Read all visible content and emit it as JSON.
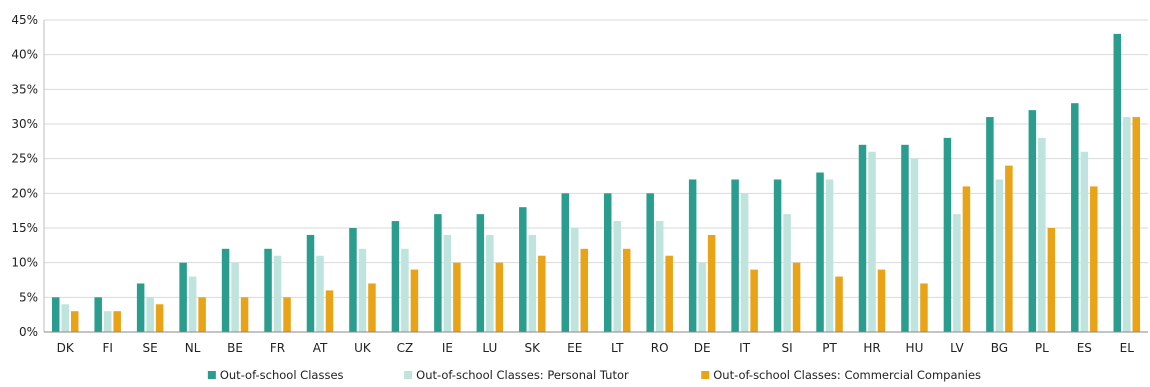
{
  "chart_data": {
    "type": "bar",
    "categories": [
      "DK",
      "FI",
      "SE",
      "NL",
      "BE",
      "FR",
      "AT",
      "UK",
      "CZ",
      "IE",
      "LU",
      "SK",
      "EE",
      "LT",
      "RO",
      "DE",
      "IT",
      "SI",
      "PT",
      "HR",
      "HU",
      "LV",
      "BG",
      "PL",
      "ES",
      "EL"
    ],
    "series": [
      {
        "name": "Out-of-school Classes",
        "color": "#2a9d8f",
        "values": [
          5,
          5,
          7,
          10,
          12,
          12,
          14,
          15,
          16,
          17,
          17,
          18,
          20,
          20,
          20,
          22,
          22,
          22,
          23,
          27,
          27,
          28,
          31,
          32,
          33,
          43
        ]
      },
      {
        "name": "Out-of-school Classes: Personal Tutor",
        "color": "#bfe3dd",
        "values": [
          4,
          3,
          5,
          8,
          10,
          11,
          11,
          12,
          12,
          14,
          14,
          14,
          15,
          16,
          16,
          10,
          20,
          17,
          22,
          26,
          25,
          17,
          22,
          28,
          26,
          31
        ]
      },
      {
        "name": "Out-of-school Classes: Commercial Companies",
        "color": "#e8a317",
        "values": [
          3,
          3,
          4,
          5,
          5,
          5,
          6,
          7,
          9,
          10,
          10,
          11,
          12,
          12,
          11,
          14,
          9,
          10,
          8,
          9,
          7,
          21,
          24,
          15,
          21,
          31
        ]
      }
    ],
    "y_ticks": [
      "0%",
      "5%",
      "10%",
      "15%",
      "20%",
      "25%",
      "30%",
      "35%",
      "40%",
      "45%"
    ],
    "ylim": [
      0,
      45
    ],
    "grid": true,
    "legend_position": "bottom-center"
  }
}
